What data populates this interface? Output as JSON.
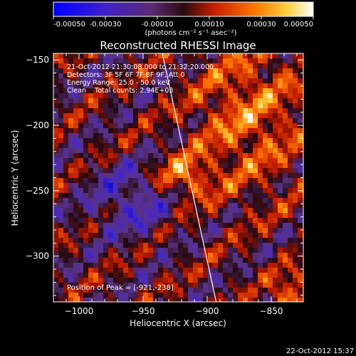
{
  "colorbar": {
    "ticks": [
      "-0.00050",
      "-0.00030",
      "-0.00010",
      "0.00010",
      "0.00030",
      "0.00050"
    ],
    "units": "(photons cm⁻² s⁻¹ asec⁻²)"
  },
  "timestamp": "22-Oct-2012 15:37",
  "chart_data": {
    "type": "heatmap",
    "title": "Reconstructed RHESSI Image",
    "xlabel": "Heliocentric X (arcsec)",
    "ylabel": "Heliocentric Y (arcsec)",
    "xlim": [
      -1020,
      -825
    ],
    "ylim": [
      -335,
      -145
    ],
    "xticks": [
      -1000,
      -950,
      -900,
      -850
    ],
    "yticks": [
      -150,
      -200,
      -250,
      -300
    ],
    "colorbar_range": [
      -0.0005,
      0.0005
    ],
    "annotations": [
      "21-Oct-2012 21:30:08.000 to 21:32:20.000",
      "Detectors: 3F 5F 6F 7F 8F 9F, Att 0",
      "Energy Range: 25.0 - 50.0 keV",
      "Clean    Total counts: 2.94E+03"
    ],
    "peak_label": "Position of Peak = [-921,-238]",
    "peak": [
      -921,
      -238
    ],
    "limb_line": [
      [
        -935,
        -145
      ],
      [
        -893,
        -335
      ]
    ],
    "grid": false
  }
}
